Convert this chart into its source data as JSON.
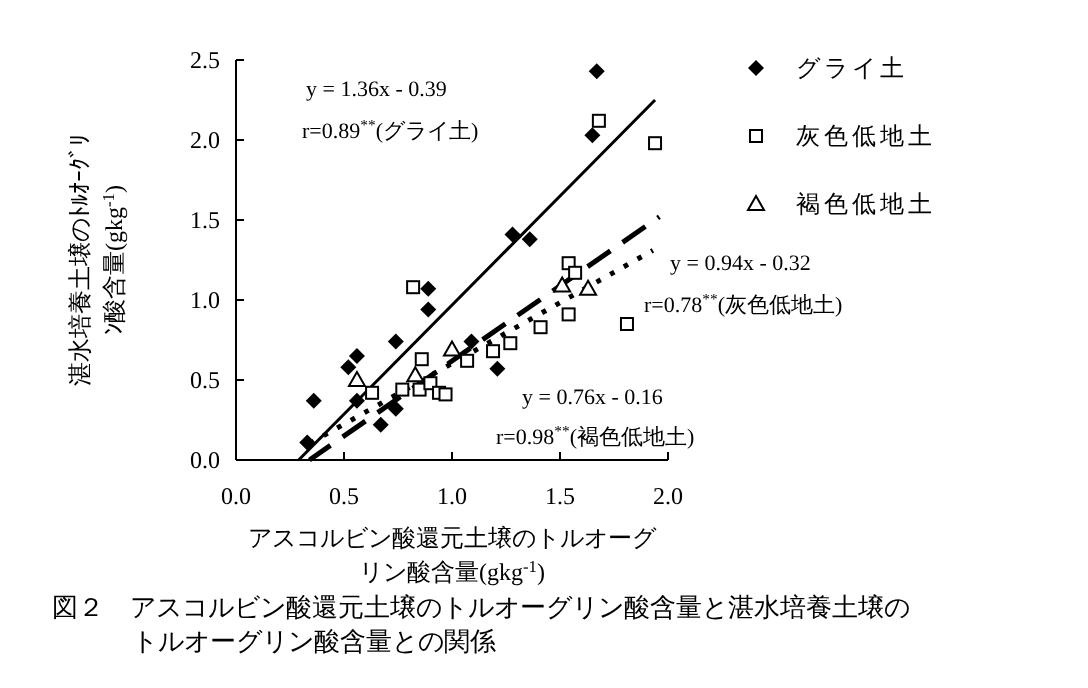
{
  "chart_data": {
    "type": "scatter",
    "title": "図２　アスコルビン酸還元土壌のトルオーグリン酸含量と湛水培養土壌のトルオーグリン酸含量との関係",
    "xlabel": "アスコルビン酸還元土壌のトルオーグリン酸含量(gkg$^{-1}$)",
    "ylabel": "湛水培養土壌のﾄﾙｵｰｸﾞﾘﾝ酸含量(gkg$^{-1}$)",
    "xlim": [
      0,
      2
    ],
    "ylim": [
      0,
      2.5
    ],
    "xticks": [
      {
        "value": 0,
        "label": "0.0"
      },
      {
        "value": 0.5,
        "label": "0.5"
      },
      {
        "value": 1,
        "label": "1.0"
      },
      {
        "value": 1.5,
        "label": "1.5"
      },
      {
        "value": 2,
        "label": "2.0"
      }
    ],
    "yticks": [
      {
        "value": 0,
        "label": "0.0"
      },
      {
        "value": 0.5,
        "label": "0.5"
      },
      {
        "value": 1,
        "label": "1.0"
      },
      {
        "value": 1.5,
        "label": "1.5"
      },
      {
        "value": 2,
        "label": "2.0"
      },
      {
        "value": 2.5,
        "label": "2.5"
      }
    ],
    "grid": false,
    "legend": "top right",
    "series": [
      {
        "name": "グライ土",
        "color": "#000000",
        "marker": "diamond",
        "x": [
          0.33,
          0.36,
          0.52,
          0.56,
          0.56,
          0.74,
          0.74,
          0.67,
          0.89,
          0.89,
          1.21,
          1.09,
          1.28,
          1.36,
          1.65,
          1.67
        ],
        "values": [
          0.11,
          0.37,
          0.58,
          0.65,
          0.37,
          0.74,
          0.32,
          0.22,
          1.07,
          0.94,
          0.57,
          0.74,
          1.41,
          1.38,
          2.03,
          2.43
        ]
      },
      {
        "name": "灰色低地土",
        "color": "#000000",
        "marker": "square",
        "x": [
          0.82,
          0.86,
          0.63,
          0.77,
          0.85,
          0.9,
          0.94,
          0.97,
          1.07,
          1.19,
          1.27,
          1.41,
          1.54,
          1.57,
          1.54,
          1.81,
          1.68,
          1.94
        ],
        "values": [
          1.08,
          0.63,
          0.42,
          0.44,
          0.44,
          0.48,
          0.42,
          0.41,
          0.62,
          0.68,
          0.73,
          0.83,
          1.23,
          1.17,
          0.91,
          0.85,
          2.12,
          1.98
        ]
      },
      {
        "name": "褐色低地土",
        "color": "#000000",
        "marker": "triangle",
        "x": [
          0.56,
          0.83,
          1.0,
          1.51,
          1.63
        ],
        "values": [
          0.5,
          0.53,
          0.69,
          1.09,
          1.07
        ]
      },
      {
        "type": "line",
        "color": "#000000",
        "line_style": "solid",
        "marker": "none",
        "x": [
          0.29,
          1.94
        ],
        "values": [
          0.0,
          2.25
        ]
      },
      {
        "type": "line",
        "color": "#000000",
        "line_style": "dashed",
        "marker": "none",
        "x": [
          0.34,
          1.96
        ],
        "values": [
          0.0,
          1.52
        ]
      },
      {
        "type": "line",
        "color": "#000000",
        "line_style": "dotted",
        "marker": "none",
        "x": [
          0.35,
          1.93
        ],
        "values": [
          0.11,
          1.31
        ]
      }
    ],
    "annotations": [
      "y = 1.36x - 0.39",
      "r=0.89$^{**}$(グライ土)",
      "y = 0.94x - 0.32",
      "r=0.78$^{**}$(灰色低地土)",
      "y = 0.76x - 0.16",
      "r=0.98$^{**}$(褐色低地土)"
    ]
  }
}
